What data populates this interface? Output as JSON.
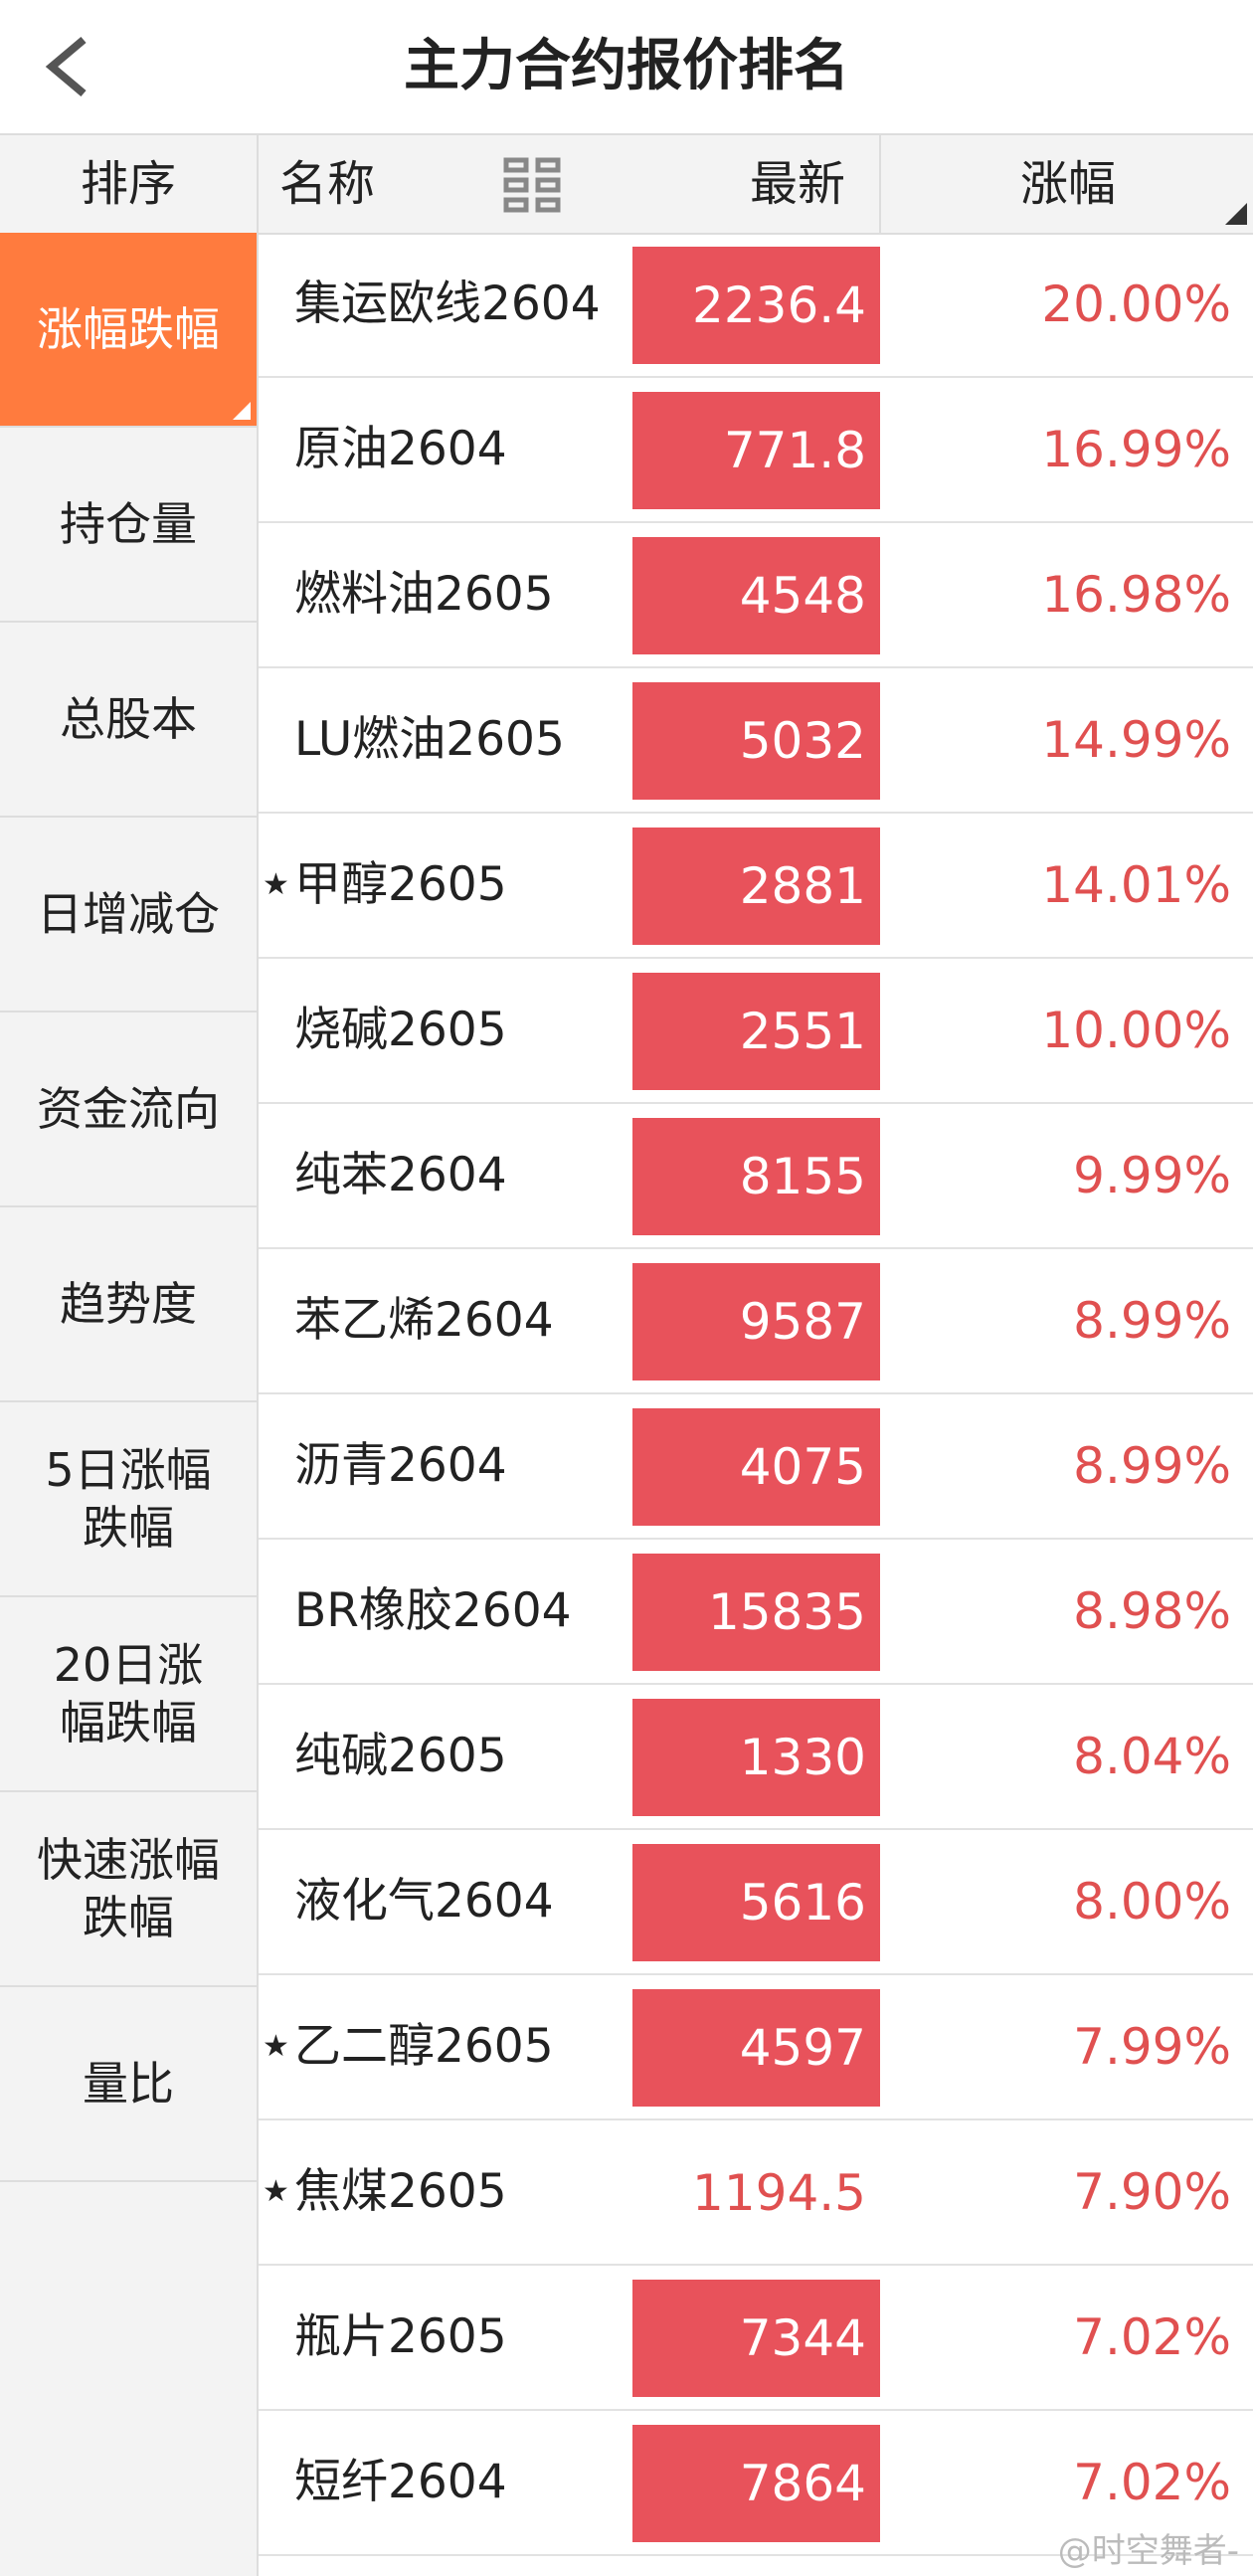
{
  "header": {
    "title": "主力合约报价排名"
  },
  "columns": {
    "sort": "排序",
    "name": "名称",
    "latest": "最新",
    "change": "涨幅"
  },
  "sidebar": [
    {
      "lines": [
        "涨幅跌幅"
      ],
      "active": true
    },
    {
      "lines": [
        "持仓量"
      ],
      "active": false
    },
    {
      "lines": [
        "总股本"
      ],
      "active": false
    },
    {
      "lines": [
        "日增减仓"
      ],
      "active": false
    },
    {
      "lines": [
        "资金流向"
      ],
      "active": false
    },
    {
      "lines": [
        "趋势度"
      ],
      "active": false
    },
    {
      "lines": [
        "5日涨幅",
        "跌幅"
      ],
      "active": false
    },
    {
      "lines": [
        "20日涨",
        "幅跌幅"
      ],
      "active": false
    },
    {
      "lines": [
        "快速涨幅",
        "跌幅"
      ],
      "active": false
    },
    {
      "lines": [
        "量比"
      ],
      "active": false
    }
  ],
  "rows": [
    {
      "name": "集运欧线2604",
      "latest": "2236.4",
      "change": "20.00%",
      "starred": false,
      "highlight": true
    },
    {
      "name": "原油2604",
      "latest": "771.8",
      "change": "16.99%",
      "starred": false,
      "highlight": true
    },
    {
      "name": "燃料油2605",
      "latest": "4548",
      "change": "16.98%",
      "starred": false,
      "highlight": true
    },
    {
      "name": "LU燃油2605",
      "latest": "5032",
      "change": "14.99%",
      "starred": false,
      "highlight": true
    },
    {
      "name": "甲醇2605",
      "latest": "2881",
      "change": "14.01%",
      "starred": true,
      "highlight": true
    },
    {
      "name": "烧碱2605",
      "latest": "2551",
      "change": "10.00%",
      "starred": false,
      "highlight": true
    },
    {
      "name": "纯苯2604",
      "latest": "8155",
      "change": "9.99%",
      "starred": false,
      "highlight": true
    },
    {
      "name": "苯乙烯2604",
      "latest": "9587",
      "change": "8.99%",
      "starred": false,
      "highlight": true
    },
    {
      "name": "沥青2604",
      "latest": "4075",
      "change": "8.99%",
      "starred": false,
      "highlight": true
    },
    {
      "name": "BR橡胶2604",
      "latest": "15835",
      "change": "8.98%",
      "starred": false,
      "highlight": true
    },
    {
      "name": "纯碱2605",
      "latest": "1330",
      "change": "8.04%",
      "starred": false,
      "highlight": true
    },
    {
      "name": "液化气2604",
      "latest": "5616",
      "change": "8.00%",
      "starred": false,
      "highlight": true
    },
    {
      "name": "乙二醇2605",
      "latest": "4597",
      "change": "7.99%",
      "starred": true,
      "highlight": true
    },
    {
      "name": "焦煤2605",
      "latest": "1194.5",
      "change": "7.90%",
      "starred": true,
      "highlight": false
    },
    {
      "name": "瓶片2605",
      "latest": "7344",
      "change": "7.02%",
      "starred": false,
      "highlight": true
    },
    {
      "name": "短纤2604",
      "latest": "7864",
      "change": "7.02%",
      "starred": false,
      "highlight": true
    }
  ],
  "watermark": "@时空舞者-"
}
